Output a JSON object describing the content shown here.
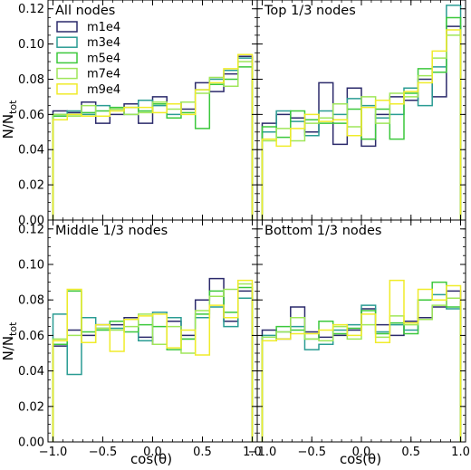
{
  "figure": {
    "ylabel_main": "N/N",
    "ylabel_sub": "tot",
    "xlabel": "cos(θ)"
  },
  "legend": {
    "entries": [
      {
        "name": "m1e4",
        "color": "#2b2a6b"
      },
      {
        "name": "m3e4",
        "color": "#2a9c93"
      },
      {
        "name": "m5e4",
        "color": "#3cc83c"
      },
      {
        "name": "m7e4",
        "color": "#9fe65a"
      },
      {
        "name": "m9e4",
        "color": "#f0ec2a"
      }
    ]
  },
  "chart_data": [
    {
      "type": "histogram-step",
      "title": "All nodes",
      "bin_edges": [
        -1.0,
        -0.857,
        -0.714,
        -0.571,
        -0.429,
        -0.286,
        -0.143,
        0.0,
        0.143,
        0.286,
        0.429,
        0.571,
        0.714,
        0.857,
        1.0
      ],
      "xlim": [
        -1.05,
        1.05
      ],
      "ylim": [
        0.0,
        0.125
      ],
      "xticks": [
        -1.0,
        -0.5,
        0.0,
        0.5,
        1.0
      ],
      "xtick_labels": [
        "−1.0",
        "−0.5",
        "0.0",
        "0.5",
        "1.0"
      ],
      "yticks": [
        0.0,
        0.02,
        0.04,
        0.06,
        0.08,
        0.1,
        0.12
      ],
      "ytick_labels": [
        "0.00",
        "0.02",
        "0.04",
        "0.06",
        "0.08",
        "0.10",
        "0.12"
      ],
      "series": [
        {
          "name": "m1e4",
          "color": "#2b2a6b",
          "values": [
            0.062,
            0.061,
            0.067,
            0.055,
            0.06,
            0.066,
            0.055,
            0.07,
            0.066,
            0.063,
            0.078,
            0.073,
            0.083,
            0.093
          ]
        },
        {
          "name": "m3e4",
          "color": "#2a9c93",
          "values": [
            0.06,
            0.062,
            0.06,
            0.065,
            0.063,
            0.06,
            0.068,
            0.065,
            0.06,
            0.067,
            0.074,
            0.08,
            0.085,
            0.092
          ]
        },
        {
          "name": "m5e4",
          "color": "#3cc83c",
          "values": [
            0.059,
            0.06,
            0.061,
            0.062,
            0.064,
            0.064,
            0.062,
            0.066,
            0.058,
            0.061,
            0.052,
            0.077,
            0.08,
            0.087
          ]
        },
        {
          "name": "m7e4",
          "color": "#9fe65a",
          "values": [
            0.06,
            0.059,
            0.065,
            0.059,
            0.063,
            0.06,
            0.061,
            0.067,
            0.063,
            0.067,
            0.072,
            0.081,
            0.076,
            0.09
          ]
        },
        {
          "name": "m9e4",
          "color": "#f0ec2a",
          "values": [
            0.057,
            0.06,
            0.059,
            0.059,
            0.062,
            0.064,
            0.064,
            0.061,
            0.066,
            0.06,
            0.074,
            0.078,
            0.086,
            0.094
          ]
        }
      ]
    },
    {
      "type": "histogram-step",
      "title": "Top 1/3 nodes",
      "bin_edges": [
        -1.0,
        -0.857,
        -0.714,
        -0.571,
        -0.429,
        -0.286,
        -0.143,
        0.0,
        0.143,
        0.286,
        0.429,
        0.571,
        0.714,
        0.857,
        1.0
      ],
      "xlim": [
        -1.05,
        1.05
      ],
      "ylim": [
        0.0,
        0.125
      ],
      "xticks": [
        -1.0,
        -0.5,
        0.0,
        0.5,
        1.0
      ],
      "xtick_labels": [
        "−1.0",
        "−0.5",
        "0.0",
        "0.5",
        "1.0"
      ],
      "yticks": [
        0.0,
        0.02,
        0.04,
        0.06,
        0.08,
        0.1,
        0.12
      ],
      "ytick_labels": [],
      "series": [
        {
          "name": "m1e4",
          "color": "#2b2a6b",
          "values": [
            0.055,
            0.06,
            0.058,
            0.05,
            0.078,
            0.043,
            0.075,
            0.042,
            0.06,
            0.07,
            0.068,
            0.08,
            0.07,
            0.11
          ]
        },
        {
          "name": "m3e4",
          "color": "#2a9c93",
          "values": [
            0.05,
            0.062,
            0.056,
            0.048,
            0.062,
            0.06,
            0.069,
            0.065,
            0.058,
            0.06,
            0.075,
            0.065,
            0.087,
            0.122
          ]
        },
        {
          "name": "m5e4",
          "color": "#3cc83c",
          "values": [
            0.053,
            0.047,
            0.062,
            0.057,
            0.055,
            0.055,
            0.063,
            0.046,
            0.063,
            0.046,
            0.072,
            0.086,
            0.084,
            0.115
          ]
        },
        {
          "name": "m7e4",
          "color": "#9fe65a",
          "values": [
            0.045,
            0.052,
            0.045,
            0.055,
            0.058,
            0.066,
            0.053,
            0.07,
            0.055,
            0.072,
            0.07,
            0.082,
            0.092,
            0.105
          ]
        },
        {
          "name": "m9e4",
          "color": "#f0ec2a",
          "values": [
            0.046,
            0.042,
            0.052,
            0.06,
            0.056,
            0.057,
            0.048,
            0.064,
            0.068,
            0.066,
            0.073,
            0.078,
            0.096,
            0.108
          ]
        }
      ]
    },
    {
      "type": "histogram-step",
      "title": "Middle 1/3 nodes",
      "bin_edges": [
        -1.0,
        -0.857,
        -0.714,
        -0.571,
        -0.429,
        -0.286,
        -0.143,
        0.0,
        0.143,
        0.286,
        0.429,
        0.571,
        0.714,
        0.857,
        1.0
      ],
      "xlim": [
        -1.05,
        1.05
      ],
      "ylim": [
        0.0,
        0.125
      ],
      "xticks": [
        -1.0,
        -0.5,
        0.0,
        0.5,
        1.0
      ],
      "xtick_labels": [
        "−1.0",
        "−0.5",
        "0.0",
        "0.5",
        "1.0"
      ],
      "yticks": [
        0.0,
        0.02,
        0.04,
        0.06,
        0.08,
        0.1,
        0.12
      ],
      "ytick_labels": [
        "0.00",
        "0.02",
        "0.04",
        "0.06",
        "0.08",
        "0.10",
        "0.12"
      ],
      "series": [
        {
          "name": "m1e4",
          "color": "#2b2a6b",
          "values": [
            0.054,
            0.063,
            0.06,
            0.066,
            0.066,
            0.07,
            0.059,
            0.055,
            0.068,
            0.06,
            0.08,
            0.092,
            0.068,
            0.085
          ]
        },
        {
          "name": "m3e4",
          "color": "#2a9c93",
          "values": [
            0.072,
            0.038,
            0.07,
            0.064,
            0.064,
            0.069,
            0.057,
            0.073,
            0.07,
            0.058,
            0.07,
            0.076,
            0.065,
            0.081
          ]
        },
        {
          "name": "m5e4",
          "color": "#3cc83c",
          "values": [
            0.055,
            0.085,
            0.062,
            0.063,
            0.068,
            0.062,
            0.066,
            0.065,
            0.052,
            0.058,
            0.072,
            0.085,
            0.073,
            0.087
          ]
        },
        {
          "name": "m7e4",
          "color": "#9fe65a",
          "values": [
            0.058,
            0.06,
            0.056,
            0.064,
            0.063,
            0.065,
            0.072,
            0.055,
            0.065,
            0.05,
            0.074,
            0.082,
            0.086,
            0.089
          ]
        },
        {
          "name": "m9e4",
          "color": "#f0ec2a",
          "values": [
            0.057,
            0.086,
            0.056,
            0.066,
            0.051,
            0.069,
            0.071,
            0.072,
            0.053,
            0.063,
            0.049,
            0.077,
            0.07,
            0.091
          ]
        }
      ]
    },
    {
      "type": "histogram-step",
      "title": "Bottom 1/3 nodes",
      "bin_edges": [
        -1.0,
        -0.857,
        -0.714,
        -0.571,
        -0.429,
        -0.286,
        -0.143,
        0.0,
        0.143,
        0.286,
        0.429,
        0.571,
        0.714,
        0.857,
        1.0
      ],
      "xlim": [
        -1.05,
        1.05
      ],
      "ylim": [
        0.0,
        0.125
      ],
      "xticks": [
        -1.0,
        -0.5,
        0.0,
        0.5,
        1.0
      ],
      "xtick_labels": [
        "−1.0",
        "−0.5",
        "0.0",
        "0.5",
        "1.0"
      ],
      "yticks": [
        0.0,
        0.02,
        0.04,
        0.06,
        0.08,
        0.1,
        0.12
      ],
      "ytick_labels": [],
      "series": [
        {
          "name": "m1e4",
          "color": "#2b2a6b",
          "values": [
            0.063,
            0.058,
            0.076,
            0.062,
            0.059,
            0.06,
            0.063,
            0.075,
            0.066,
            0.06,
            0.068,
            0.07,
            0.076,
            0.085
          ]
        },
        {
          "name": "m3e4",
          "color": "#2a9c93",
          "values": [
            0.06,
            0.062,
            0.065,
            0.052,
            0.055,
            0.063,
            0.066,
            0.077,
            0.062,
            0.066,
            0.063,
            0.08,
            0.083,
            0.075
          ]
        },
        {
          "name": "m5e4",
          "color": "#3cc83c",
          "values": [
            0.057,
            0.065,
            0.063,
            0.058,
            0.068,
            0.061,
            0.064,
            0.074,
            0.061,
            0.067,
            0.061,
            0.08,
            0.09,
            0.076
          ]
        },
        {
          "name": "m7e4",
          "color": "#9fe65a",
          "values": [
            0.059,
            0.062,
            0.07,
            0.058,
            0.057,
            0.065,
            0.058,
            0.066,
            0.059,
            0.071,
            0.066,
            0.069,
            0.077,
            0.081
          ]
        },
        {
          "name": "m9e4",
          "color": "#f0ec2a",
          "values": [
            0.057,
            0.058,
            0.061,
            0.061,
            0.063,
            0.066,
            0.06,
            0.072,
            0.056,
            0.091,
            0.067,
            0.086,
            0.08,
            0.088
          ]
        }
      ]
    }
  ]
}
